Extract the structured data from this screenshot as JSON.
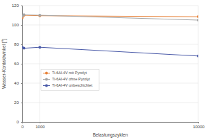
{
  "chart_data": {
    "type": "line",
    "x_label": "Belastungszyklen",
    "y_label": "Wasser-Kontaktwinkel [°]",
    "x": [
      0,
      100,
      1000,
      10000
    ],
    "xlim": [
      0,
      10000
    ],
    "xticks": [
      0,
      1000,
      10000
    ],
    "ylim": [
      0,
      120
    ],
    "yticks": [
      0,
      20,
      40,
      60,
      80,
      100,
      120
    ],
    "grid": true,
    "legend": "center left",
    "marker": "circle",
    "line_style": "solid",
    "series": [
      {
        "name": "Ti-6Al-4V mit Pyrolyt",
        "color": "#e8833a",
        "values": [
          107.5,
          110,
          109.5,
          108.5
        ]
      },
      {
        "name": "Ti-6Al-4V ohne Pyrolyt",
        "color": "#a5a5a5",
        "values": [
          109,
          110.5,
          110,
          105
        ]
      },
      {
        "name": "Ti-6Al-4V unbeschichtet",
        "color": "#4a5aa8",
        "values": [
          77,
          76,
          77,
          68
        ]
      }
    ]
  }
}
